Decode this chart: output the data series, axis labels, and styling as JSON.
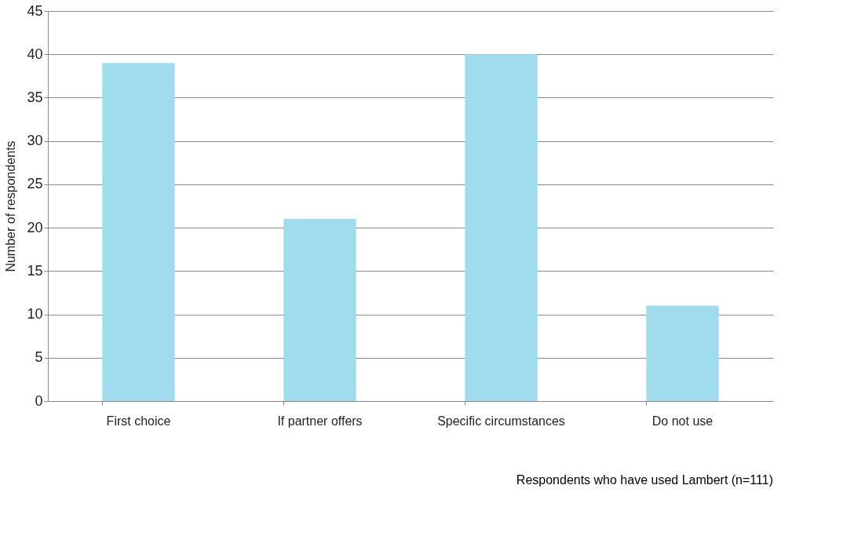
{
  "chart_data": {
    "type": "bar",
    "ylabel": "Number of respondents",
    "categories": [
      "First choice",
      "If partner offers",
      "Specific circumstances",
      "Do not use"
    ],
    "values": [
      39,
      21,
      40,
      11
    ],
    "color": "#a0dcee",
    "ylim": [
      0,
      45
    ],
    "yticks": [
      0,
      5,
      10,
      15,
      20,
      25,
      30,
      35,
      40,
      45
    ],
    "grid": "y",
    "annotations": [
      "Respondents who have used Lambert (n=111)"
    ]
  }
}
